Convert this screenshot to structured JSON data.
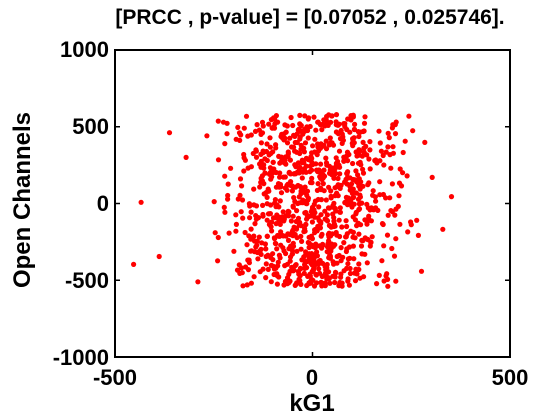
{
  "chart_data": {
    "type": "scatter",
    "title": "[PRCC , p-value] = [0.07052 , 0.025746].",
    "xlabel": "kG1",
    "ylabel": "Open Channels",
    "xlim": [
      -500,
      500
    ],
    "ylim": [
      -1000,
      1000
    ],
    "xticks": [
      -500,
      0,
      500
    ],
    "yticks": [
      -1000,
      -500,
      0,
      500,
      1000
    ],
    "xtick_labels": [
      "-500",
      "0",
      "500"
    ],
    "ytick_labels": [
      "-1000",
      "-500",
      "0",
      "500",
      "1000"
    ],
    "grid": false,
    "legend": "none",
    "marker_color": "#ff0000",
    "sample_size": 1000,
    "x_distribution": "uniform-like, mostly between -300 and 300, sparse tails to about -460 and 350",
    "y_distribution": "uniform, between about -540 and 580",
    "outliers": [
      {
        "x": -453,
        "y": -397
      },
      {
        "x": -434,
        "y": 8
      },
      {
        "x": -388,
        "y": -345
      },
      {
        "x": -362,
        "y": 461
      },
      {
        "x": -320,
        "y": 300
      },
      {
        "x": -290,
        "y": -510
      },
      {
        "x": 352,
        "y": 45
      },
      {
        "x": 330,
        "y": -168
      },
      {
        "x": 303,
        "y": 170
      },
      {
        "x": 276,
        "y": -442
      }
    ]
  }
}
